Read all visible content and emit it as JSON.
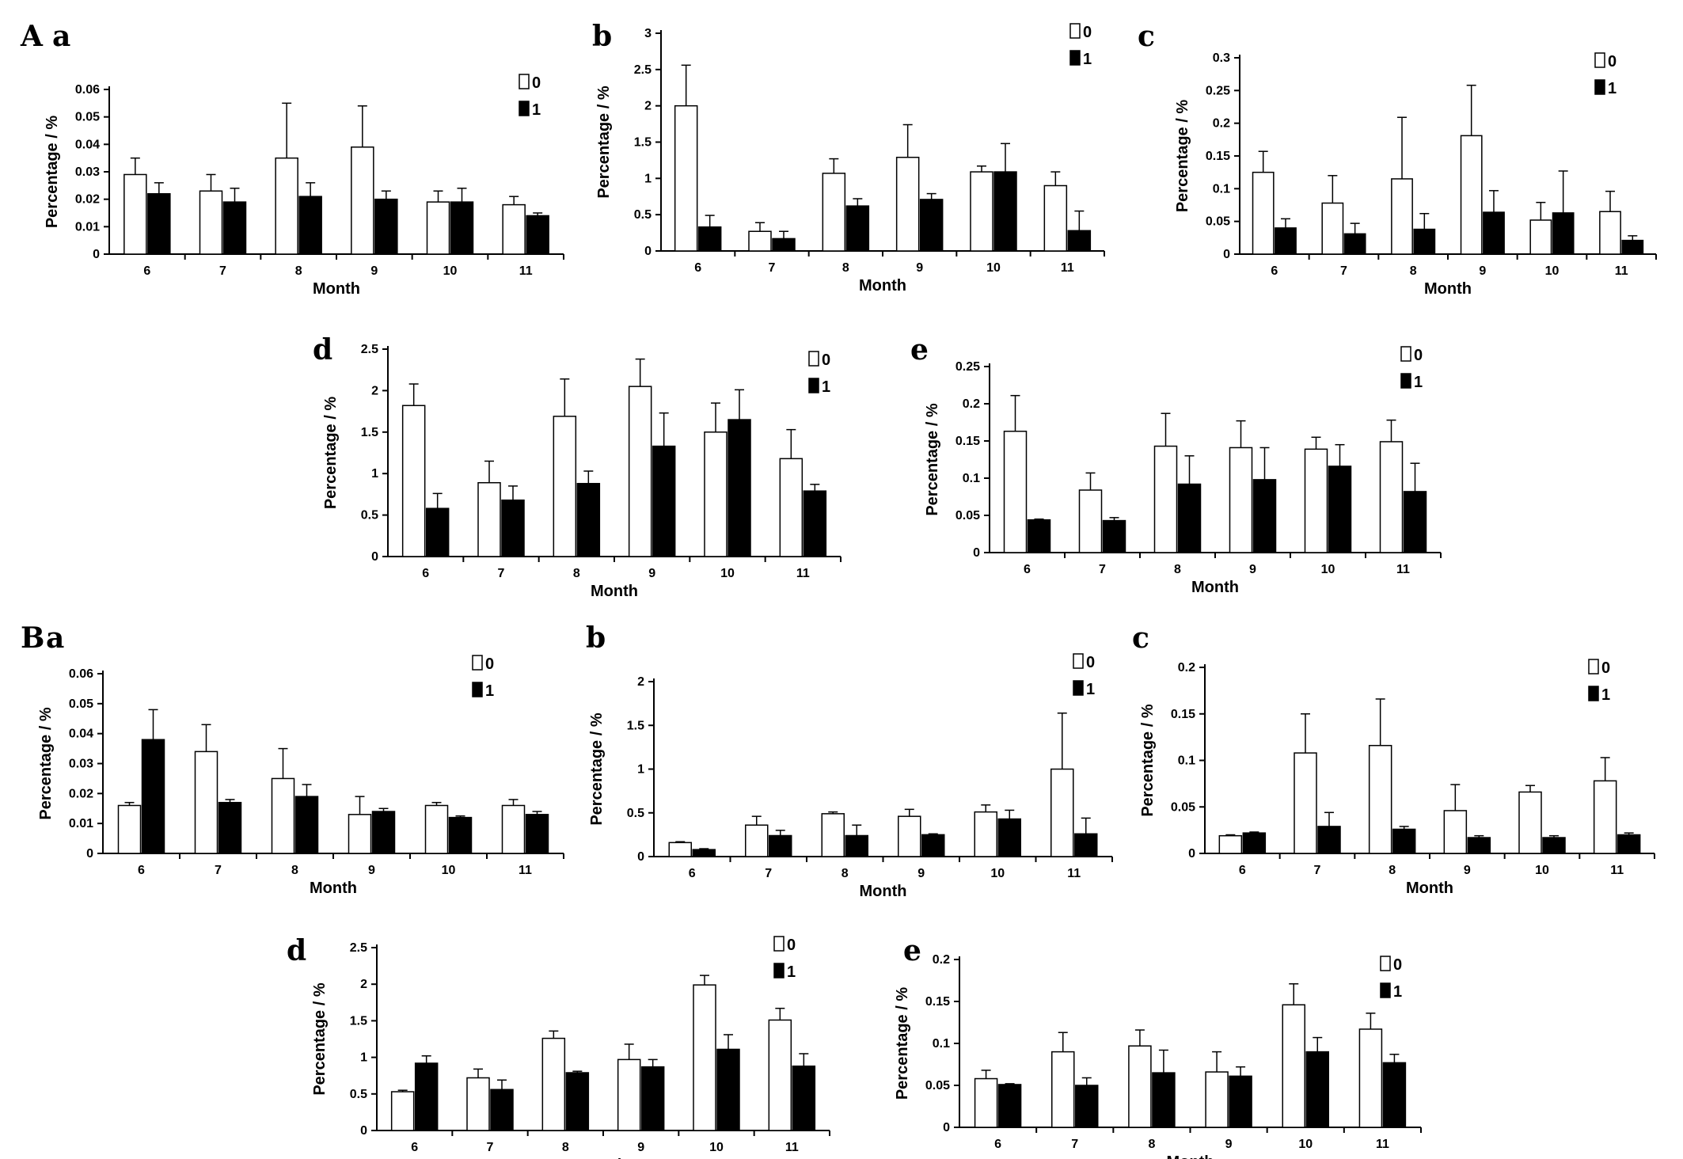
{
  "figure": {
    "group_labels": [
      "A",
      "B"
    ]
  },
  "colors": {
    "series_0_fill": "#ffffff",
    "series_1_fill": "#000000",
    "stroke": "#000000"
  },
  "chart_data": [
    {
      "id": "A-a",
      "letter": "a",
      "group": "A",
      "type": "bar",
      "xlabel": "Month",
      "ylabel": "Percentage / %",
      "categories": [
        "6",
        "7",
        "8",
        "9",
        "10",
        "11"
      ],
      "ylim": [
        0,
        0.06
      ],
      "yticks": [
        "0",
        "0.01",
        "0.02",
        "0.03",
        "0.04",
        "0.05",
        "0.06"
      ],
      "legend": [
        "0",
        "1"
      ],
      "legend_position": "top-right",
      "series": [
        {
          "name": "0",
          "values": [
            0.029,
            0.023,
            0.035,
            0.039,
            0.019,
            0.018
          ],
          "errors": [
            0.006,
            0.006,
            0.02,
            0.015,
            0.004,
            0.003
          ]
        },
        {
          "name": "1",
          "values": [
            0.022,
            0.019,
            0.021,
            0.02,
            0.019,
            0.014
          ],
          "errors": [
            0.004,
            0.005,
            0.005,
            0.003,
            0.005,
            0.001
          ]
        }
      ]
    },
    {
      "id": "A-b",
      "letter": "b",
      "group": "A",
      "type": "bar",
      "xlabel": "Month",
      "ylabel": "Percentage / %",
      "categories": [
        "6",
        "7",
        "8",
        "9",
        "10",
        "11"
      ],
      "ylim": [
        0,
        3
      ],
      "yticks": [
        "0",
        "0.5",
        "1",
        "1.5",
        "2",
        "2.5",
        "3"
      ],
      "legend": [
        "0",
        "1"
      ],
      "legend_position": "top-right",
      "series": [
        {
          "name": "0",
          "values": [
            2.0,
            0.27,
            1.07,
            1.29,
            1.09,
            0.9
          ],
          "errors": [
            0.56,
            0.12,
            0.2,
            0.45,
            0.08,
            0.19
          ]
        },
        {
          "name": "1",
          "values": [
            0.33,
            0.17,
            0.62,
            0.71,
            1.09,
            0.28
          ],
          "errors": [
            0.16,
            0.1,
            0.1,
            0.08,
            0.39,
            0.27
          ]
        }
      ]
    },
    {
      "id": "A-c",
      "letter": "c",
      "group": "A",
      "type": "bar",
      "xlabel": "Month",
      "ylabel": "Percentage / %",
      "categories": [
        "6",
        "7",
        "8",
        "9",
        "10",
        "11"
      ],
      "ylim": [
        0,
        0.3
      ],
      "yticks": [
        "0",
        "0.05",
        "0.1",
        "0.15",
        "0.2",
        "0.25",
        "0.3"
      ],
      "legend": [
        "0",
        "1"
      ],
      "legend_position": "top-right",
      "series": [
        {
          "name": "0",
          "values": [
            0.125,
            0.078,
            0.115,
            0.181,
            0.052,
            0.065
          ],
          "errors": [
            0.032,
            0.042,
            0.094,
            0.077,
            0.027,
            0.031
          ]
        },
        {
          "name": "1",
          "values": [
            0.04,
            0.031,
            0.038,
            0.064,
            0.063,
            0.021
          ],
          "errors": [
            0.014,
            0.016,
            0.024,
            0.033,
            0.064,
            0.007
          ]
        }
      ]
    },
    {
      "id": "A-d",
      "letter": "d",
      "group": "A",
      "type": "bar",
      "xlabel": "Month",
      "ylabel": "Percentage / %",
      "categories": [
        "6",
        "7",
        "8",
        "9",
        "10",
        "11"
      ],
      "ylim": [
        0,
        2.5
      ],
      "yticks": [
        "0",
        "0.5",
        "1",
        "1.5",
        "2",
        "2.5"
      ],
      "legend": [
        "0",
        "1"
      ],
      "legend_position": "top-right",
      "series": [
        {
          "name": "0",
          "values": [
            1.82,
            0.89,
            1.69,
            2.05,
            1.5,
            1.18
          ],
          "errors": [
            0.26,
            0.26,
            0.45,
            0.33,
            0.35,
            0.35
          ]
        },
        {
          "name": "1",
          "values": [
            0.58,
            0.68,
            0.88,
            1.33,
            1.65,
            0.79
          ],
          "errors": [
            0.18,
            0.17,
            0.15,
            0.4,
            0.36,
            0.08
          ]
        }
      ]
    },
    {
      "id": "A-e",
      "letter": "e",
      "group": "A",
      "type": "bar",
      "xlabel": "Month",
      "ylabel": "Percentage / %",
      "categories": [
        "6",
        "7",
        "8",
        "9",
        "10",
        "11"
      ],
      "ylim": [
        0,
        0.25
      ],
      "yticks": [
        "0",
        "0.05",
        "0.1",
        "0.15",
        "0.2",
        "0.25"
      ],
      "legend": [
        "0",
        "1"
      ],
      "legend_position": "top-right",
      "series": [
        {
          "name": "0",
          "values": [
            0.163,
            0.084,
            0.143,
            0.141,
            0.139,
            0.149
          ],
          "errors": [
            0.048,
            0.023,
            0.044,
            0.036,
            0.016,
            0.029
          ]
        },
        {
          "name": "1",
          "values": [
            0.044,
            0.043,
            0.092,
            0.098,
            0.116,
            0.082
          ],
          "errors": [
            0.001,
            0.004,
            0.038,
            0.043,
            0.029,
            0.038
          ]
        }
      ]
    },
    {
      "id": "B-a",
      "letter": "a",
      "group": "B",
      "type": "bar",
      "xlabel": "Month",
      "ylabel": "Percentage / %",
      "categories": [
        "6",
        "7",
        "8",
        "9",
        "10",
        "11"
      ],
      "ylim": [
        0,
        0.06
      ],
      "yticks": [
        "0",
        "0.01",
        "0.02",
        "0.03",
        "0.04",
        "0.05",
        "0.06"
      ],
      "legend": [
        "0",
        "1"
      ],
      "legend_position": "top-right",
      "series": [
        {
          "name": "0",
          "values": [
            0.016,
            0.034,
            0.025,
            0.013,
            0.016,
            0.016
          ],
          "errors": [
            0.001,
            0.009,
            0.01,
            0.006,
            0.001,
            0.002
          ]
        },
        {
          "name": "1",
          "values": [
            0.038,
            0.017,
            0.019,
            0.014,
            0.012,
            0.013
          ],
          "errors": [
            0.01,
            0.001,
            0.004,
            0.001,
            0.0005,
            0.001
          ]
        }
      ]
    },
    {
      "id": "B-b",
      "letter": "b",
      "group": "B",
      "type": "bar",
      "xlabel": "Month",
      "ylabel": "Percentage / %",
      "categories": [
        "6",
        "7",
        "8",
        "9",
        "10",
        "11"
      ],
      "ylim": [
        0,
        2
      ],
      "yticks": [
        "0",
        "0.5",
        "1",
        "1.5",
        "2"
      ],
      "legend": [
        "0",
        "1"
      ],
      "legend_position": "top-right",
      "series": [
        {
          "name": "0",
          "values": [
            0.16,
            0.36,
            0.49,
            0.46,
            0.51,
            1.0
          ],
          "errors": [
            0.01,
            0.1,
            0.02,
            0.08,
            0.08,
            0.64
          ]
        },
        {
          "name": "1",
          "values": [
            0.08,
            0.24,
            0.24,
            0.25,
            0.43,
            0.26
          ],
          "errors": [
            0.01,
            0.06,
            0.12,
            0.01,
            0.1,
            0.18
          ]
        }
      ]
    },
    {
      "id": "B-c",
      "letter": "c",
      "group": "B",
      "type": "bar",
      "xlabel": "Month",
      "ylabel": "Percentage / %",
      "categories": [
        "6",
        "7",
        "8",
        "9",
        "10",
        "11"
      ],
      "ylim": [
        0,
        0.2
      ],
      "yticks": [
        "0",
        "0.05",
        "0.1",
        "0.15",
        "0.2"
      ],
      "legend": [
        "0",
        "1"
      ],
      "legend_position": "top-right",
      "series": [
        {
          "name": "0",
          "values": [
            0.019,
            0.108,
            0.116,
            0.046,
            0.066,
            0.078
          ],
          "errors": [
            0.001,
            0.042,
            0.05,
            0.028,
            0.007,
            0.025
          ]
        },
        {
          "name": "1",
          "values": [
            0.022,
            0.029,
            0.026,
            0.017,
            0.017,
            0.02
          ],
          "errors": [
            0.001,
            0.015,
            0.003,
            0.002,
            0.002,
            0.002
          ]
        }
      ]
    },
    {
      "id": "B-d",
      "letter": "d",
      "group": "B",
      "type": "bar",
      "xlabel": "Month",
      "ylabel": "Percentage / %",
      "categories": [
        "6",
        "7",
        "8",
        "9",
        "10",
        "11"
      ],
      "ylim": [
        0,
        2.5
      ],
      "yticks": [
        "0",
        "0.5",
        "1",
        "1.5",
        "2",
        "2.5"
      ],
      "legend": [
        "0",
        "1"
      ],
      "legend_position": "top-right",
      "series": [
        {
          "name": "0",
          "values": [
            0.53,
            0.72,
            1.26,
            0.97,
            1.99,
            1.51
          ],
          "errors": [
            0.02,
            0.12,
            0.1,
            0.21,
            0.13,
            0.16
          ]
        },
        {
          "name": "1",
          "values": [
            0.92,
            0.56,
            0.79,
            0.87,
            1.11,
            0.88
          ],
          "errors": [
            0.1,
            0.13,
            0.02,
            0.1,
            0.2,
            0.17
          ]
        }
      ]
    },
    {
      "id": "B-e",
      "letter": "e",
      "group": "B",
      "type": "bar",
      "xlabel": "Month",
      "ylabel": "Percentage / %",
      "categories": [
        "6",
        "7",
        "8",
        "9",
        "10",
        "11"
      ],
      "ylim": [
        0,
        0.2
      ],
      "yticks": [
        "0",
        "0.05",
        "0.1",
        "0.15",
        "0.2"
      ],
      "legend": [
        "0",
        "1"
      ],
      "legend_position": "top-right",
      "series": [
        {
          "name": "0",
          "values": [
            0.058,
            0.09,
            0.097,
            0.066,
            0.146,
            0.117
          ],
          "errors": [
            0.01,
            0.023,
            0.019,
            0.024,
            0.025,
            0.019
          ]
        },
        {
          "name": "1",
          "values": [
            0.051,
            0.05,
            0.065,
            0.061,
            0.09,
            0.077
          ],
          "errors": [
            0.001,
            0.009,
            0.027,
            0.011,
            0.017,
            0.01
          ]
        }
      ]
    }
  ]
}
